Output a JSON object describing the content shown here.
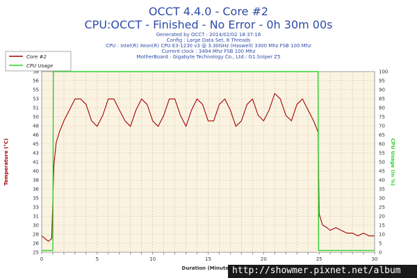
{
  "title_main": "OCCT 4.4.0 - Core #2",
  "title_sub": "CPU:OCCT - Finished - No Error - 0h 30m 00s",
  "info_lines": [
    "Generated by OCCT : 2014/02/02 18:37:16",
    "Config : Large Data Set, 8 Threads",
    "CPU : Intel(R) Xeon(R) CPU E3-1230 v3 @ 3.30GHz (Haswell) 3300 Mhz FSB 100 Mhz",
    "Current clock : 3494 Mhz FSB 100 Mhz",
    "MotherBoard : Gigabyte Technology Co., Ltd.: G1.Sniper Z5"
  ],
  "watermark": "http://showmer.pixnet.net/album",
  "colors": {
    "title": "#2d4aa8",
    "temperature": "#a00000",
    "cpu_usage": "#2ed12e",
    "plot_bg": "#fbf3e2",
    "grid": "#c9b79a"
  },
  "chart_data": {
    "type": "line",
    "title": "OCCT 4.4.0 - Core #2",
    "subtitle": "CPU:OCCT - Finished - No Error - 0h 30m 00s",
    "xlabel": "Duration (Minutes)",
    "ylabel": "Temperature (°C)",
    "y2label": "CPU Usage (in %)",
    "xlim": [
      0,
      30
    ],
    "ylim": [
      25,
      58
    ],
    "y2lim": [
      0,
      100
    ],
    "x_ticks": [
      "0",
      "5",
      "10",
      "15",
      "20",
      "25",
      "30"
    ],
    "y_ticks": [
      "25",
      "26",
      "28",
      "30",
      "31",
      "33",
      "35",
      "36",
      "38",
      "40",
      "41",
      "43",
      "45",
      "46",
      "48",
      "50",
      "51",
      "53",
      "55",
      "56",
      "58"
    ],
    "y_tick_values": [
      25,
      26.65,
      28.3,
      29.95,
      31.6,
      33.25,
      34.9,
      36.55,
      38.2,
      39.85,
      41.5,
      43.15,
      44.8,
      46.45,
      48.1,
      49.75,
      51.4,
      53.05,
      54.7,
      56.35,
      58
    ],
    "y2_ticks": [
      "0",
      "5",
      "10",
      "15",
      "20",
      "25",
      "30",
      "35",
      "40",
      "45",
      "50",
      "55",
      "60",
      "65",
      "70",
      "75",
      "80",
      "85",
      "90",
      "95",
      "100"
    ],
    "grid": true,
    "legend_position": "top-left",
    "series": [
      {
        "name": "Core #2",
        "axis": "left",
        "color": "#a00000",
        "x": [
          0,
          0.3,
          0.6,
          0.9,
          1.1,
          1.3,
          1.6,
          2,
          2.5,
          3,
          3.5,
          4,
          4.5,
          5,
          5.5,
          6,
          6.5,
          7,
          7.5,
          8,
          8.5,
          9,
          9.5,
          10,
          10.5,
          11,
          11.5,
          12,
          12.5,
          13,
          13.5,
          14,
          14.5,
          15,
          15.5,
          16,
          16.5,
          17,
          17.5,
          18,
          18.5,
          19,
          19.5,
          20,
          20.5,
          21,
          21.5,
          22,
          22.5,
          23,
          23.5,
          24,
          24.5,
          24.9,
          25,
          25.3,
          25.7,
          26,
          26.5,
          27,
          27.5,
          28,
          28.5,
          29,
          29.5,
          30
        ],
        "y": [
          28,
          27.5,
          27,
          27.5,
          41,
          45,
          47,
          49,
          51,
          53,
          53,
          52,
          49,
          48,
          50,
          53,
          53,
          51,
          49,
          48,
          51,
          53,
          52,
          49,
          48,
          50,
          53,
          53,
          50,
          48,
          51,
          53,
          52,
          49,
          49,
          52,
          53,
          51,
          48,
          49,
          52,
          53,
          50,
          49,
          51,
          54,
          53,
          50,
          49,
          52,
          53,
          51,
          49,
          47,
          32,
          30,
          29.5,
          29,
          29.5,
          29,
          28.5,
          28.5,
          28,
          28.5,
          28,
          28
        ]
      },
      {
        "name": "CPU Usage",
        "axis": "right",
        "color": "#2ed12e",
        "x": [
          0,
          1,
          1.05,
          24.9,
          24.95,
          30
        ],
        "y": [
          1,
          1,
          100,
          100,
          1,
          1
        ]
      }
    ]
  }
}
